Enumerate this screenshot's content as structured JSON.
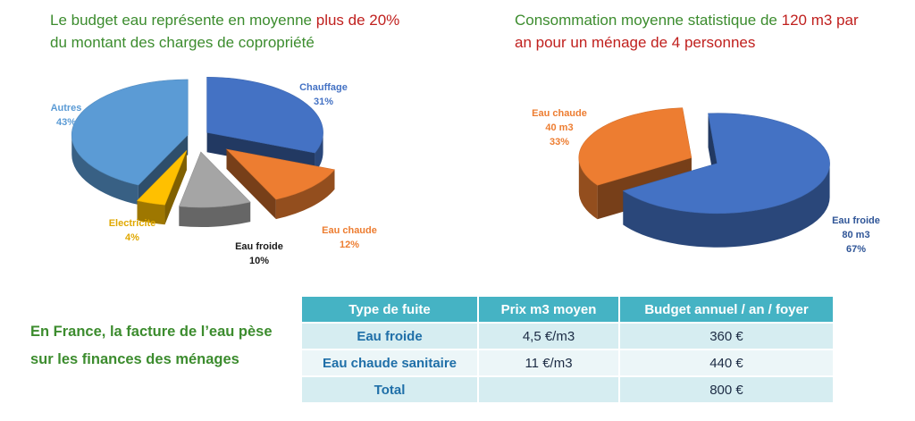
{
  "headlines": {
    "left_prefix": "Le budget eau représente en moyenne ",
    "left_highlight": "plus de 20%",
    "left_suffix": "du montant des charges de copropriété",
    "right_prefix": "Consommation moyenne statistique de ",
    "right_highlight_1": "120 m3 par",
    "right_highlight_2": "an pour un ménage de 4 personnes"
  },
  "france_text": {
    "line1": "En France, la facture de l’eau pèse",
    "line2": "sur les finances des ménages"
  },
  "chart_data": [
    {
      "type": "pie",
      "title": "",
      "slices": [
        {
          "label": "Chauffage",
          "value_label": "31%",
          "value": 31,
          "color": "#4472c4"
        },
        {
          "label": "Eau chaude",
          "value_label": "12%",
          "value": 12,
          "color": "#ed7d31"
        },
        {
          "label": "Eau froide",
          "value_label": "10%",
          "value": 10,
          "color": "#a5a5a5"
        },
        {
          "label": "Electricite",
          "value_label": "4%",
          "value": 4,
          "color": "#ffc000"
        },
        {
          "label": "Autres",
          "value_label": "43%",
          "value": 43,
          "color": "#5b9bd5"
        }
      ],
      "exploded": true,
      "style": "3d"
    },
    {
      "type": "pie",
      "title": "",
      "slices": [
        {
          "label": "Eau froide",
          "amount": "80 m3",
          "value_label": "67%",
          "value": 67,
          "color": "#4472c4"
        },
        {
          "label": "Eau chaude",
          "amount": "40 m3",
          "value_label": "33%",
          "value": 33,
          "color": "#ed7d31"
        }
      ],
      "exploded": true,
      "style": "3d"
    }
  ],
  "table": {
    "headers": [
      "Type de fuite",
      "Prix m3 moyen",
      "Budget annuel / an / foyer"
    ],
    "rows": [
      [
        "Eau froide",
        "4,5 €/m3",
        "360 €"
      ],
      [
        "Eau chaude sanitaire",
        "11 €/m3",
        "440 €"
      ],
      [
        "Total",
        "",
        "800 €"
      ]
    ],
    "header_color": "#45b3c4"
  }
}
